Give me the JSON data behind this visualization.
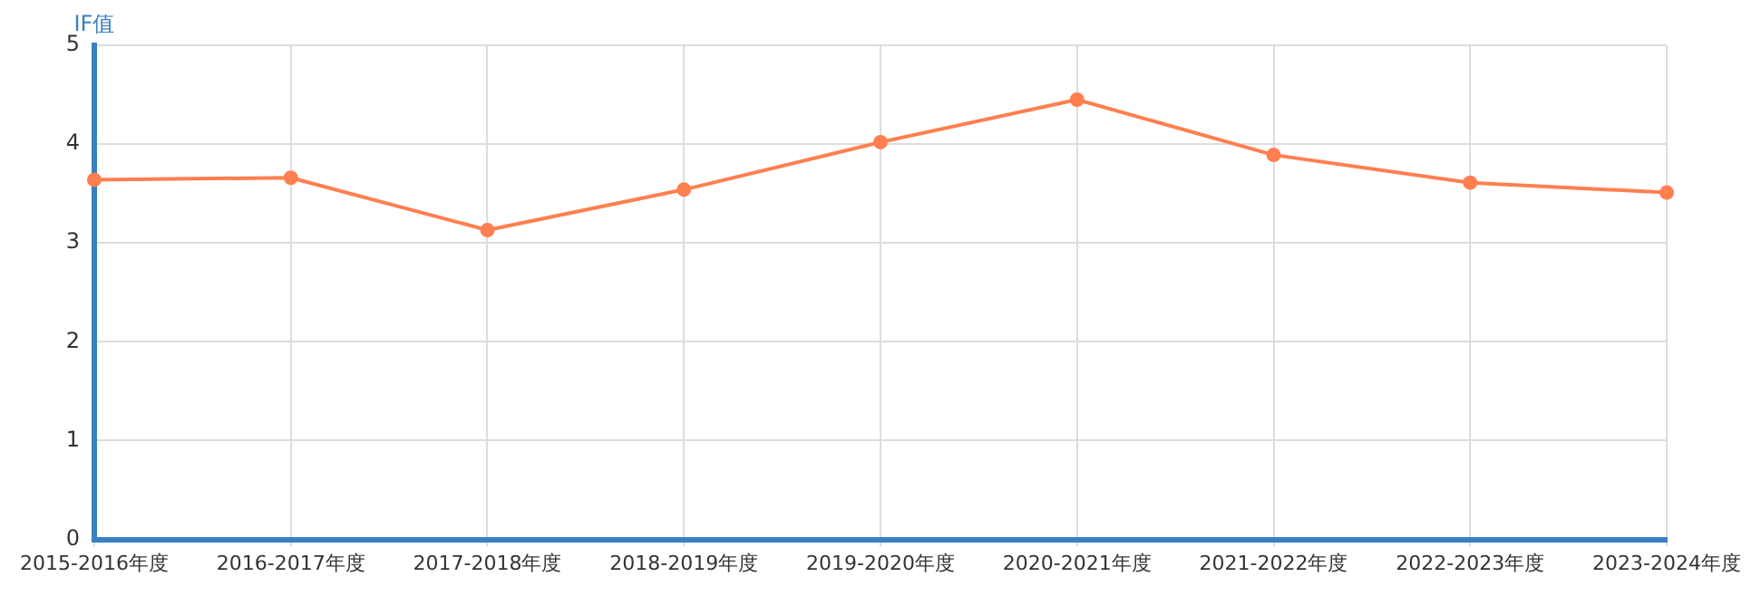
{
  "chart_data": {
    "type": "line",
    "ylabel": "IF值",
    "categories": [
      "2015-2016年度",
      "2016-2017年度",
      "2017-2018年度",
      "2018-2019年度",
      "2019-2020年度",
      "2020-2021年度",
      "2021-2022年度",
      "2022-2023年度",
      "2023-2024年度"
    ],
    "series": [
      {
        "color": "#ff7f50",
        "values": [
          3.64,
          3.66,
          3.13,
          3.54,
          4.02,
          4.45,
          3.89,
          3.61,
          3.51
        ]
      }
    ],
    "ylim": [
      0,
      5
    ],
    "yticks": [
      0,
      1,
      2,
      3,
      4,
      5
    ],
    "grid": true,
    "legend": false,
    "marker": "circle",
    "line_style": "solid"
  }
}
